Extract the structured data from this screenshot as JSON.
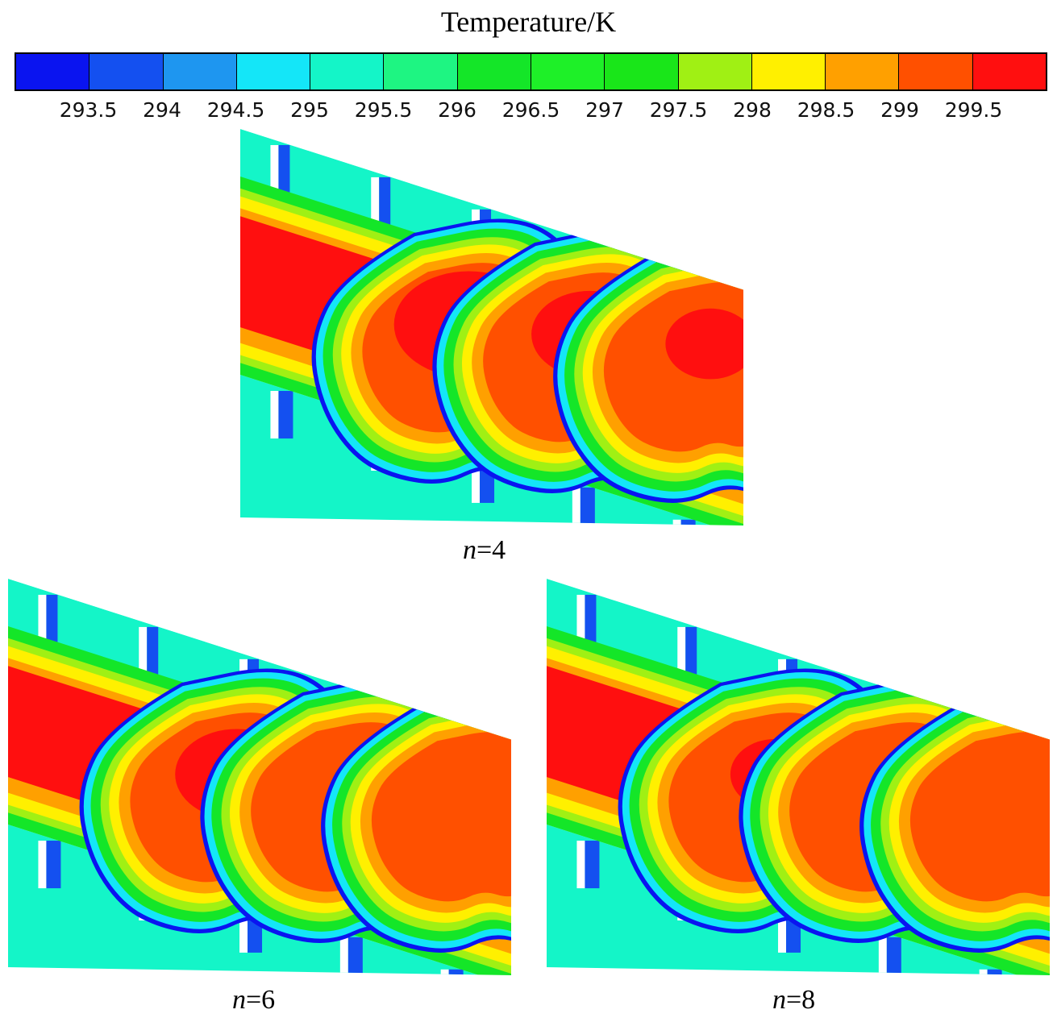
{
  "colorbar": {
    "title": "Temperature/K",
    "ticks": [
      "293.5",
      "294",
      "294.5",
      "295",
      "295.5",
      "296",
      "296.5",
      "297",
      "297.5",
      "298",
      "298.5",
      "299",
      "299.5"
    ],
    "colors": [
      "#0a14f0",
      "#1450f0",
      "#1e96f0",
      "#14e6f8",
      "#14f5c8",
      "#1ef582",
      "#14e628",
      "#1ef028",
      "#19e619",
      "#a0f014",
      "#fff000",
      "#ffa000",
      "#ff5000",
      "#ff0f0f"
    ]
  },
  "panels": [
    {
      "var": "n",
      "eq": "=4"
    },
    {
      "var": "n",
      "eq": "=6"
    },
    {
      "var": "n",
      "eq": "=8"
    }
  ]
}
